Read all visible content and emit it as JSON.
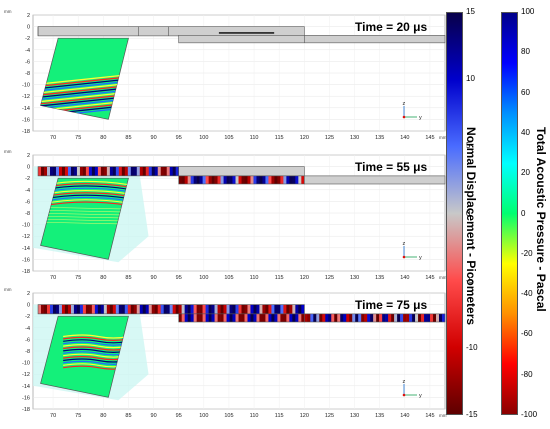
{
  "chart_data": {
    "type": "heatmap",
    "panels": [
      {
        "time_label": "Time = 20 μs",
        "snapshot": "20"
      },
      {
        "time_label": "Time = 55 μs",
        "snapshot": "55"
      },
      {
        "time_label": "Time = 75 μs",
        "snapshot": "75"
      }
    ],
    "x_axis": {
      "unit": "mm",
      "ticks": [
        70,
        75,
        80,
        85,
        90,
        95,
        100,
        105,
        110,
        115,
        120,
        125,
        130,
        135,
        140,
        145
      ],
      "range": [
        66,
        148
      ]
    },
    "y_axis": {
      "unit": "mm",
      "ticks": [
        2,
        0,
        -2,
        -4,
        -6,
        -8,
        -10,
        -12,
        -14,
        -16,
        -18
      ],
      "range": [
        -18,
        2
      ]
    },
    "triad_labels": {
      "z": "z",
      "y": "y"
    },
    "colorbars": [
      {
        "title": "Normal Displacement - Picometers",
        "range": [
          -15,
          15
        ],
        "ticks": [
          15,
          10,
          5,
          0,
          -5,
          -10,
          -15
        ],
        "colors": [
          "#08004a",
          "#0000cc",
          "#4a6cff",
          "#c8c8c8",
          "#ff4b4b",
          "#d10000",
          "#5e0000"
        ]
      },
      {
        "title": "Total Acoustic Pressure - Pascal",
        "range": [
          -100,
          100
        ],
        "ticks": [
          100,
          80,
          60,
          40,
          20,
          0,
          -20,
          -40,
          -60,
          -80,
          -100
        ],
        "colors": [
          "#00008a",
          "#0000ff",
          "#0090ff",
          "#00ffff",
          "#00ff70",
          "#ffff00",
          "#ff9000",
          "#ff0000",
          "#8a0000"
        ]
      }
    ]
  }
}
